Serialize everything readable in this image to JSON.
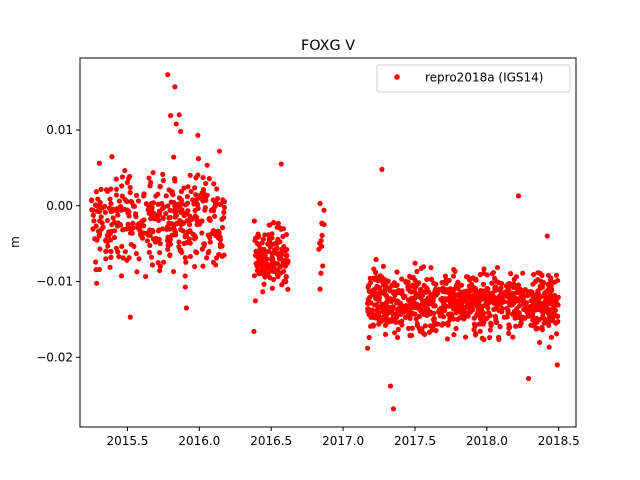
{
  "chart_data": {
    "type": "scatter",
    "title": "FOXG V",
    "xlabel": "",
    "ylabel": "m",
    "xlim": [
      2015.17,
      2018.62
    ],
    "ylim": [
      -0.0292,
      0.0195
    ],
    "xticks": [
      2015.5,
      2016.0,
      2016.5,
      2017.0,
      2017.5,
      2018.0,
      2018.5
    ],
    "xtick_labels": [
      "2015.5",
      "2016.0",
      "2016.5",
      "2017.0",
      "2017.5",
      "2018.0",
      "2018.5"
    ],
    "yticks": [
      -0.02,
      -0.01,
      0.0,
      0.01
    ],
    "ytick_labels": [
      "−0.02",
      "−0.01",
      "0.00",
      "0.01"
    ],
    "grid": false,
    "legend_position": "top-right",
    "series": [
      {
        "name": "repro2018a (IGS14)",
        "color": "#ff0000",
        "marker": "circle",
        "clusters": [
          {
            "x_range": [
              2015.25,
              2016.18
            ],
            "y_center": -0.002,
            "y_spread": 0.0045,
            "y_min": -0.0148,
            "y_max": 0.0073,
            "count": 420
          },
          {
            "x_range": [
              2016.38,
              2016.62
            ],
            "y_center": -0.0065,
            "y_spread": 0.0035,
            "y_min": -0.0167,
            "y_max": 0.0055,
            "count": 150
          },
          {
            "x_range": [
              2016.83,
              2016.87
            ],
            "y_center": -0.004,
            "y_spread": 0.004,
            "y_min": -0.011,
            "y_max": 0.0003,
            "count": 12
          },
          {
            "x_range": [
              2017.17,
              2018.5
            ],
            "y_center": -0.0128,
            "y_spread": 0.0028,
            "y_min": -0.0228,
            "y_max": 0.0013,
            "count": 900
          }
        ],
        "points": [
          {
            "x": 2015.78,
            "y": 0.0173
          },
          {
            "x": 2015.83,
            "y": 0.0157
          },
          {
            "x": 2015.8,
            "y": 0.0119
          },
          {
            "x": 2015.86,
            "y": 0.012
          },
          {
            "x": 2015.87,
            "y": 0.0098
          },
          {
            "x": 2015.84,
            "y": 0.0108
          },
          {
            "x": 2015.99,
            "y": 0.0093
          },
          {
            "x": 2016.14,
            "y": 0.0072
          },
          {
            "x": 2015.52,
            "y": -0.0147
          },
          {
            "x": 2015.91,
            "y": -0.0135
          },
          {
            "x": 2016.38,
            "y": -0.0166
          },
          {
            "x": 2016.57,
            "y": 0.0055
          },
          {
            "x": 2016.84,
            "y": 0.0003
          },
          {
            "x": 2016.84,
            "y": -0.011
          },
          {
            "x": 2017.17,
            "y": -0.0188
          },
          {
            "x": 2017.27,
            "y": 0.0048
          },
          {
            "x": 2017.33,
            "y": -0.0238
          },
          {
            "x": 2017.35,
            "y": -0.0268
          },
          {
            "x": 2018.22,
            "y": 0.0013
          },
          {
            "x": 2018.29,
            "y": -0.0228
          },
          {
            "x": 2018.49,
            "y": -0.021
          },
          {
            "x": 2018.42,
            "y": -0.004
          }
        ]
      }
    ]
  }
}
